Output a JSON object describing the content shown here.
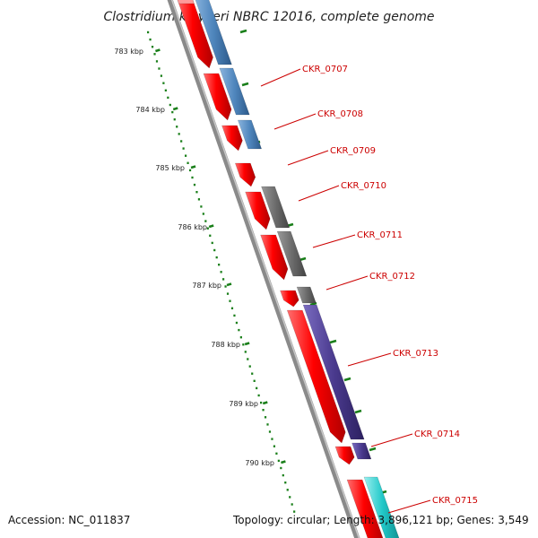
{
  "title": "Clostridium kluyveri NBRC 12016, complete genome",
  "footer": {
    "accession": "Accession: NC_011837",
    "topology": "Topology: circular; Length: 3,896,121 bp; Genes: 3,549"
  },
  "colors": {
    "forward_gene": "#ff0000",
    "steel_blue_gene": "#4f86bd",
    "gray_gene": "#6c6c6c",
    "purple_gene": "#4a3a8e",
    "cyan_gene": "#22c8c8",
    "backbone": "#8a8a8a",
    "tick_marks": "#1a7f1a",
    "gene_label": "#cc0000",
    "callout_line": "#cc0000"
  },
  "kbp_ticks": [
    "783 kbp",
    "784 kbp",
    "785 kbp",
    "786 kbp",
    "787 kbp",
    "788 kbp",
    "789 kbp",
    "790 kbp"
  ],
  "gene_labels": [
    "CKR_0707",
    "CKR_0708",
    "CKR_0709",
    "CKR_0710",
    "CKR_0711",
    "CKR_0712",
    "CKR_0713",
    "CKR_0714",
    "CKR_0715"
  ]
}
